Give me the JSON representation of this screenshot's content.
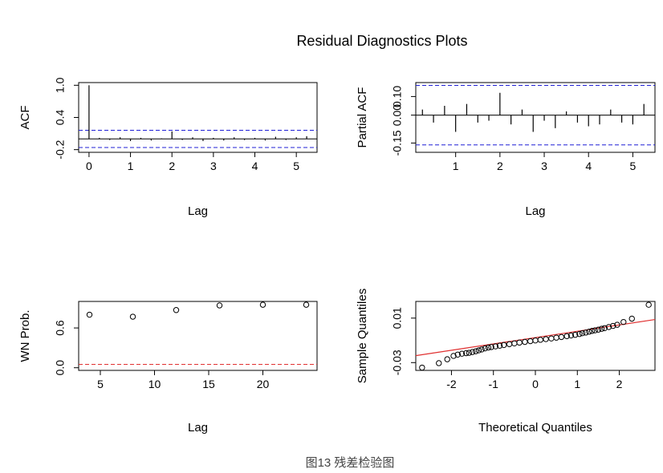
{
  "figure": {
    "title": "Residual Diagnostics Plots",
    "caption": "图13 残差检验图"
  },
  "colors": {
    "bound": "#1f1fd6",
    "ref": "#e03030",
    "ink": "#000000"
  },
  "chart_data": [
    {
      "id": "acf",
      "type": "bar",
      "title": "",
      "xlabel": "Lag",
      "ylabel": "ACF",
      "xlim": [
        -0.25,
        5.5
      ],
      "ylim": [
        -0.25,
        1.05
      ],
      "xticks": [
        0,
        1,
        2,
        3,
        4,
        5
      ],
      "yticks": [
        -0.2,
        0.4,
        1.0
      ],
      "ytick_labels": [
        "-0.2",
        "0.4",
        "1.0"
      ],
      "zero_line": true,
      "confidence_bounds": [
        0.16,
        -0.16
      ],
      "x": [
        0.0,
        0.25,
        0.5,
        0.75,
        1.0,
        1.25,
        1.5,
        1.75,
        2.0,
        2.25,
        2.5,
        2.75,
        3.0,
        3.25,
        3.5,
        3.75,
        4.0,
        4.25,
        4.5,
        4.75,
        5.0,
        5.25
      ],
      "values": [
        1.0,
        0.02,
        -0.02,
        0.03,
        -0.04,
        0.02,
        -0.03,
        0.01,
        0.14,
        -0.02,
        0.03,
        -0.04,
        0.02,
        -0.03,
        0.03,
        -0.02,
        0.02,
        -0.03,
        0.04,
        -0.02,
        0.03,
        0.05
      ]
    },
    {
      "id": "pacf",
      "type": "bar",
      "title": "",
      "xlabel": "Lag",
      "ylabel": "Partial ACF",
      "xlim": [
        0.1,
        5.5
      ],
      "ylim": [
        -0.2,
        0.175
      ],
      "xticks": [
        1,
        2,
        3,
        4,
        5
      ],
      "yticks": [
        -0.15,
        0.0,
        0.1
      ],
      "ytick_labels": [
        "-0.15",
        "0.00",
        "0.10"
      ],
      "zero_line": true,
      "confidence_bounds": [
        0.16,
        -0.16
      ],
      "x": [
        0.25,
        0.5,
        0.75,
        1.0,
        1.25,
        1.5,
        1.75,
        2.0,
        2.25,
        2.5,
        2.75,
        3.0,
        3.25,
        3.5,
        3.75,
        4.0,
        4.25,
        4.5,
        4.75,
        5.0,
        5.25
      ],
      "values": [
        0.03,
        -0.04,
        0.05,
        -0.09,
        0.06,
        -0.04,
        -0.03,
        0.12,
        -0.05,
        0.03,
        -0.09,
        -0.03,
        -0.07,
        0.02,
        -0.04,
        -0.06,
        -0.05,
        0.03,
        -0.04,
        -0.05,
        0.06
      ]
    },
    {
      "id": "ljung-box",
      "type": "scatter",
      "title": "",
      "xlabel": "Lag",
      "ylabel": "WN Prob.",
      "xlim": [
        3.0,
        25.0
      ],
      "ylim": [
        -0.04,
        1.0
      ],
      "xticks": [
        5,
        10,
        15,
        20
      ],
      "yticks": [
        0.0,
        0.6
      ],
      "ytick_labels": [
        "0.0",
        "0.6"
      ],
      "reference_line": 0.05,
      "x": [
        4,
        8,
        12,
        16,
        20,
        24
      ],
      "values": [
        0.8,
        0.77,
        0.87,
        0.94,
        0.95,
        0.95
      ]
    },
    {
      "id": "qq",
      "type": "scatter",
      "title": "",
      "xlabel": "Theoretical Quantiles",
      "ylabel": "Sample Quantiles",
      "xlim": [
        -2.85,
        2.85
      ],
      "ylim": [
        -0.037,
        0.025
      ],
      "xticks": [
        -2,
        -1,
        0,
        1,
        2
      ],
      "yticks": [
        -0.03,
        0.01
      ],
      "ytick_labels": [
        "-0.03",
        "0.01"
      ],
      "qq_line": {
        "intercept": -0.0075,
        "slope": 0.0057
      },
      "x": [
        -2.7,
        -2.3,
        -2.1,
        -1.95,
        -1.85,
        -1.75,
        -1.65,
        -1.58,
        -1.5,
        -1.42,
        -1.35,
        -1.28,
        -1.2,
        -1.12,
        -1.05,
        -0.95,
        -0.85,
        -0.75,
        -0.62,
        -0.5,
        -0.38,
        -0.25,
        -0.12,
        0.0,
        0.12,
        0.25,
        0.38,
        0.5,
        0.62,
        0.75,
        0.85,
        0.95,
        1.05,
        1.12,
        1.2,
        1.28,
        1.35,
        1.42,
        1.5,
        1.58,
        1.65,
        1.75,
        1.85,
        1.95,
        2.1,
        2.3,
        2.7
      ],
      "values": [
        -0.0345,
        -0.0305,
        -0.027,
        -0.024,
        -0.0228,
        -0.022,
        -0.0215,
        -0.0212,
        -0.0205,
        -0.0198,
        -0.019,
        -0.0182,
        -0.0172,
        -0.0165,
        -0.016,
        -0.0154,
        -0.0148,
        -0.0142,
        -0.0134,
        -0.0127,
        -0.012,
        -0.0114,
        -0.0107,
        -0.0101,
        -0.0095,
        -0.0089,
        -0.0083,
        -0.0076,
        -0.007,
        -0.0062,
        -0.0056,
        -0.005,
        -0.0043,
        -0.0036,
        -0.003,
        -0.0022,
        -0.0015,
        -0.001,
        -0.0004,
        0.0004,
        0.001,
        0.002,
        0.003,
        0.004,
        0.0065,
        0.0095,
        0.022
      ]
    }
  ]
}
